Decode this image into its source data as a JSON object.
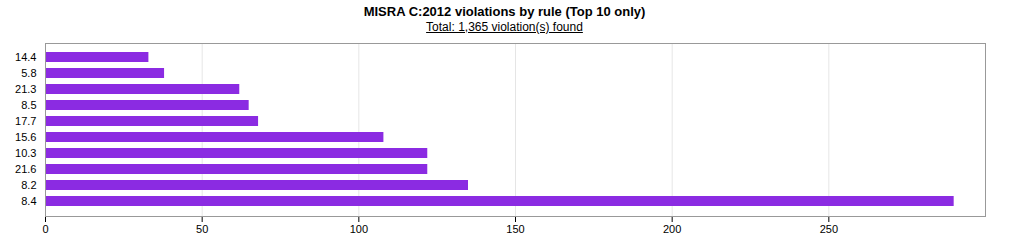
{
  "chart_data": {
    "type": "bar",
    "orientation": "horizontal",
    "title": "MISRA C:2012 violations by rule (Top 10 only)",
    "subtitle": "Total: 1,365 violation(s) found",
    "categories": [
      "8.4",
      "8.2",
      "21.6",
      "10.3",
      "15.6",
      "17.7",
      "8.5",
      "21.3",
      "5.8",
      "14.4"
    ],
    "values": [
      290,
      135,
      122,
      122,
      108,
      68,
      65,
      62,
      38,
      33
    ],
    "color": "#8B2BE2",
    "xlim": [
      0,
      300
    ],
    "xticks": [
      0,
      50,
      100,
      150,
      200,
      250
    ],
    "grid": true
  }
}
